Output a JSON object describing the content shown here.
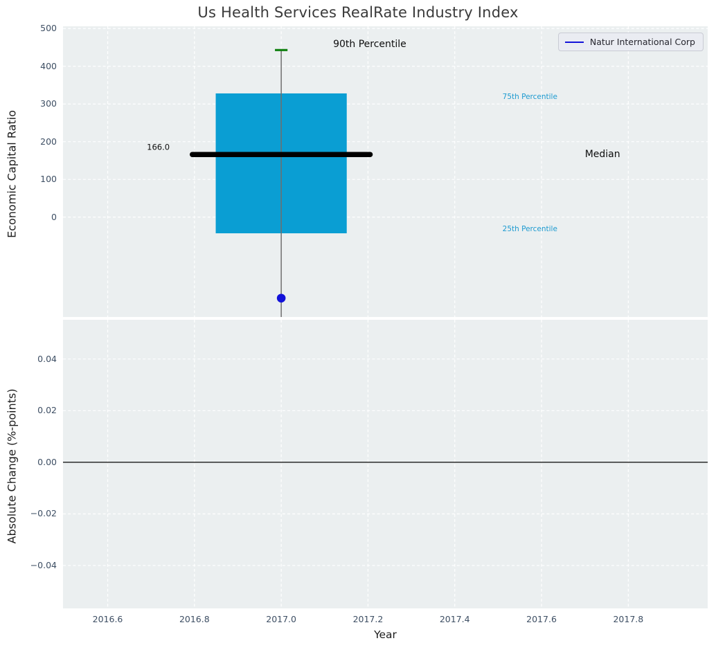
{
  "title": "Us Health Services RealRate Industry Index",
  "legend": {
    "label": "Natur International Corp",
    "line_color": "#1212d9"
  },
  "colors": {
    "figure_bg": "#ffffff",
    "axes_bg": "#ebeff0",
    "grid": "#ffffff",
    "tick_text": "#3d4e63"
  },
  "chart_data": [
    {
      "type": "boxplot",
      "id": "economic-capital-ratio",
      "ylabel": "Economic Capital Ratio",
      "xlim": [
        2016.497,
        2017.983
      ],
      "ylim": [
        -265,
        506
      ],
      "ytick_values": [
        0,
        100,
        200,
        300,
        400,
        500
      ],
      "ytick_labels": [
        "0",
        "100",
        "200",
        "300",
        "400",
        "500"
      ],
      "xtick_values": [
        2016.6,
        2016.8,
        2017.0,
        2017.2,
        2017.4,
        2017.6,
        2017.8
      ],
      "xtick_labels_visible": false,
      "grid": true,
      "box": {
        "x": 2017.0,
        "q1": -43,
        "median": 166.0,
        "q3": 328,
        "p90": 443,
        "whisker_bottom": -265,
        "box_half_width": 0.151,
        "median_line_half_width": 0.205,
        "cap_half_width": 0.0145,
        "box_color": "#0a9ed3",
        "median_color": "#000000",
        "whisker_color": "#6e6e6e",
        "cap_color": "#0f800f"
      },
      "company_point": {
        "x": 2017.0,
        "y": -215,
        "color": "#1212d9"
      },
      "annotations": [
        {
          "name": "annotation-90th-percentile",
          "text": "90th Percentile",
          "x": 2017.204,
          "y": 459,
          "size": 14,
          "color": "#0d0d0d",
          "align": "center"
        },
        {
          "name": "annotation-75th-percentile",
          "text": "75th Percentile",
          "x": 2017.51,
          "y": 318,
          "size": 10.5,
          "color": "#1c9ad0",
          "align": "left"
        },
        {
          "name": "annotation-median",
          "text": "Median",
          "x": 2017.7,
          "y": 166,
          "size": 14,
          "color": "#0d0d0d",
          "align": "left"
        },
        {
          "name": "annotation-25th-percentile",
          "text": "25th Percentile",
          "x": 2017.51,
          "y": -31,
          "size": 10.5,
          "color": "#1c9ad0",
          "align": "left"
        },
        {
          "name": "annotation-median-value",
          "text": "166.0",
          "x": 2016.743,
          "y": 184,
          "size": 11.5,
          "color": "#0d0d0d",
          "align": "right"
        }
      ]
    },
    {
      "type": "line",
      "id": "absolute-change",
      "ylabel": "Absolute Change (%-points)",
      "xlabel": "Year",
      "xlim": [
        2016.497,
        2017.983
      ],
      "ylim": [
        -0.0566,
        0.0552
      ],
      "ytick_values": [
        0.04,
        0.02,
        0.0,
        -0.02,
        -0.04
      ],
      "ytick_labels": [
        "0.04",
        "0.02",
        "0.00",
        "−0.02",
        "−0.04"
      ],
      "xtick_values": [
        2016.6,
        2016.8,
        2017.0,
        2017.2,
        2017.4,
        2017.6,
        2017.8
      ],
      "xtick_labels": [
        "2016.6",
        "2016.8",
        "2017.0",
        "2017.2",
        "2017.4",
        "2017.6",
        "2017.8"
      ],
      "xtick_labels_visible": true,
      "grid": true,
      "zero_line": {
        "y": 0.0,
        "color": "#000000"
      },
      "series": []
    }
  ]
}
